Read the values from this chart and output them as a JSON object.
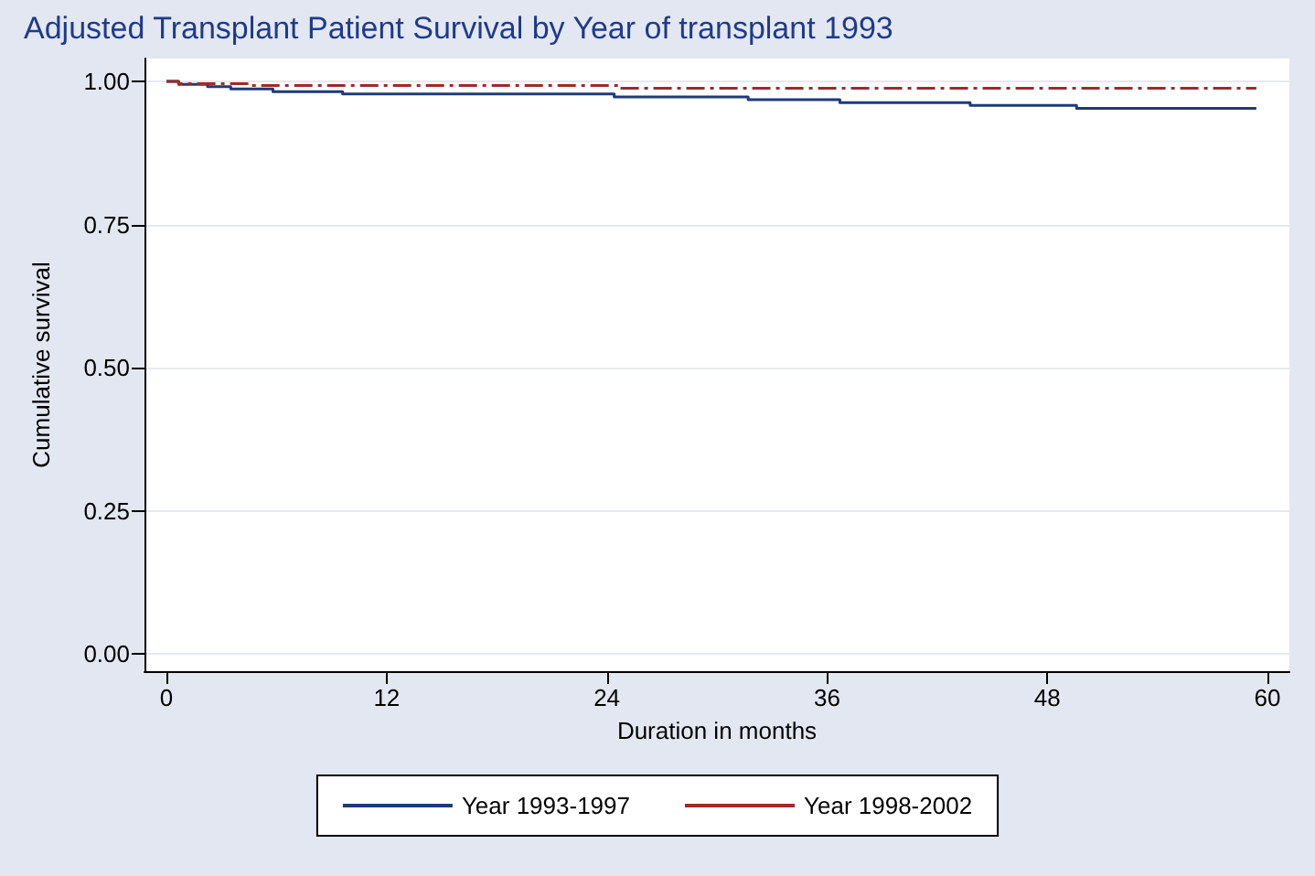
{
  "chart_data": {
    "type": "step",
    "title": "Adjusted Transplant Patient Survival by Year of transplant 1993",
    "xlabel": "Duration in months",
    "ylabel": "Cumulative survival",
    "series": [
      {
        "name": "Year 1993-1997",
        "color": "#1f3a7a",
        "line_style": "solid",
        "x": [
          0,
          0.66,
          2.24,
          3.5,
          5.8,
          9.6,
          24.4,
          31.7,
          36.7,
          43.8,
          49.6,
          59.4
        ],
        "values": [
          1.0,
          0.995,
          0.991,
          0.987,
          0.982,
          0.978,
          0.973,
          0.968,
          0.963,
          0.958,
          0.953,
          0.953
        ]
      },
      {
        "name": "Year 1998-2002",
        "color": "#9e2a2b",
        "line_style": "dashed",
        "x": [
          0,
          0.66,
          4.4,
          24.7,
          59.4
        ],
        "values": [
          1.0,
          0.996,
          0.993,
          0.988,
          0.988
        ]
      }
    ],
    "xlim": [
      -1.2,
      61.2
    ],
    "xticks": [
      0,
      12,
      24,
      36,
      48,
      60
    ],
    "ylim": [
      -0.03,
      1.04
    ],
    "yticks": [
      {
        "value": 0,
        "label": "0.00"
      },
      {
        "value": 0.25,
        "label": "0.25"
      },
      {
        "value": 0.5,
        "label": "0.50"
      },
      {
        "value": 0.75,
        "label": "0.75"
      },
      {
        "value": 1,
        "label": "1.00"
      }
    ],
    "grid": "y",
    "legend": "bottom",
    "marker": "none"
  }
}
